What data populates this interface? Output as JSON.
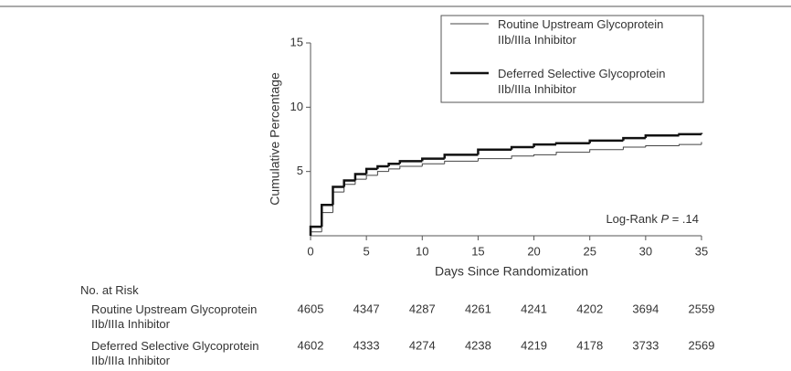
{
  "chart_data": {
    "type": "step",
    "x_label": "Days Since Randomization",
    "y_label": "Cumulative Percentage",
    "annotation_parts": [
      "Log-Rank ",
      "P",
      " = .14"
    ],
    "x": [
      0,
      1,
      2,
      3,
      4,
      5,
      6,
      7,
      8,
      10,
      12,
      15,
      18,
      20,
      22,
      25,
      28,
      30,
      33,
      35
    ],
    "series": [
      {
        "name": "Routine Upstream Glycoprotein IIb/IIIa Inhibitor",
        "color": "#444444",
        "width": 1,
        "values": [
          0.3,
          1.8,
          3.4,
          4.0,
          4.4,
          4.7,
          5.0,
          5.2,
          5.4,
          5.6,
          5.8,
          6.0,
          6.2,
          6.3,
          6.5,
          6.7,
          6.9,
          7.0,
          7.1,
          7.3
        ]
      },
      {
        "name": "Deferred Selective Glycoprotein IIb/IIIa Inhibitor",
        "color": "#111111",
        "width": 2.5,
        "values": [
          0.7,
          2.4,
          3.8,
          4.3,
          4.8,
          5.2,
          5.4,
          5.6,
          5.8,
          6.0,
          6.3,
          6.7,
          6.9,
          7.1,
          7.2,
          7.4,
          7.6,
          7.8,
          7.9,
          8.0
        ]
      }
    ],
    "xlim": [
      0,
      35
    ],
    "xticks": [
      0,
      5,
      10,
      15,
      20,
      25,
      30,
      35
    ],
    "ylim": [
      0,
      15
    ],
    "yticks": [
      5,
      10,
      15
    ],
    "risk_table": {
      "title": "No. at Risk",
      "rows": [
        {
          "label": "Routine Upstream Glycoprotein IIb/IIIa Inhibitor",
          "values": [
            4605,
            4347,
            4287,
            4261,
            4241,
            4202,
            3694,
            2559
          ]
        },
        {
          "label": "Deferred Selective Glycoprotein IIb/IIIa Inhibitor",
          "values": [
            4602,
            4333,
            4274,
            4238,
            4219,
            4178,
            3733,
            2569
          ]
        }
      ]
    }
  }
}
